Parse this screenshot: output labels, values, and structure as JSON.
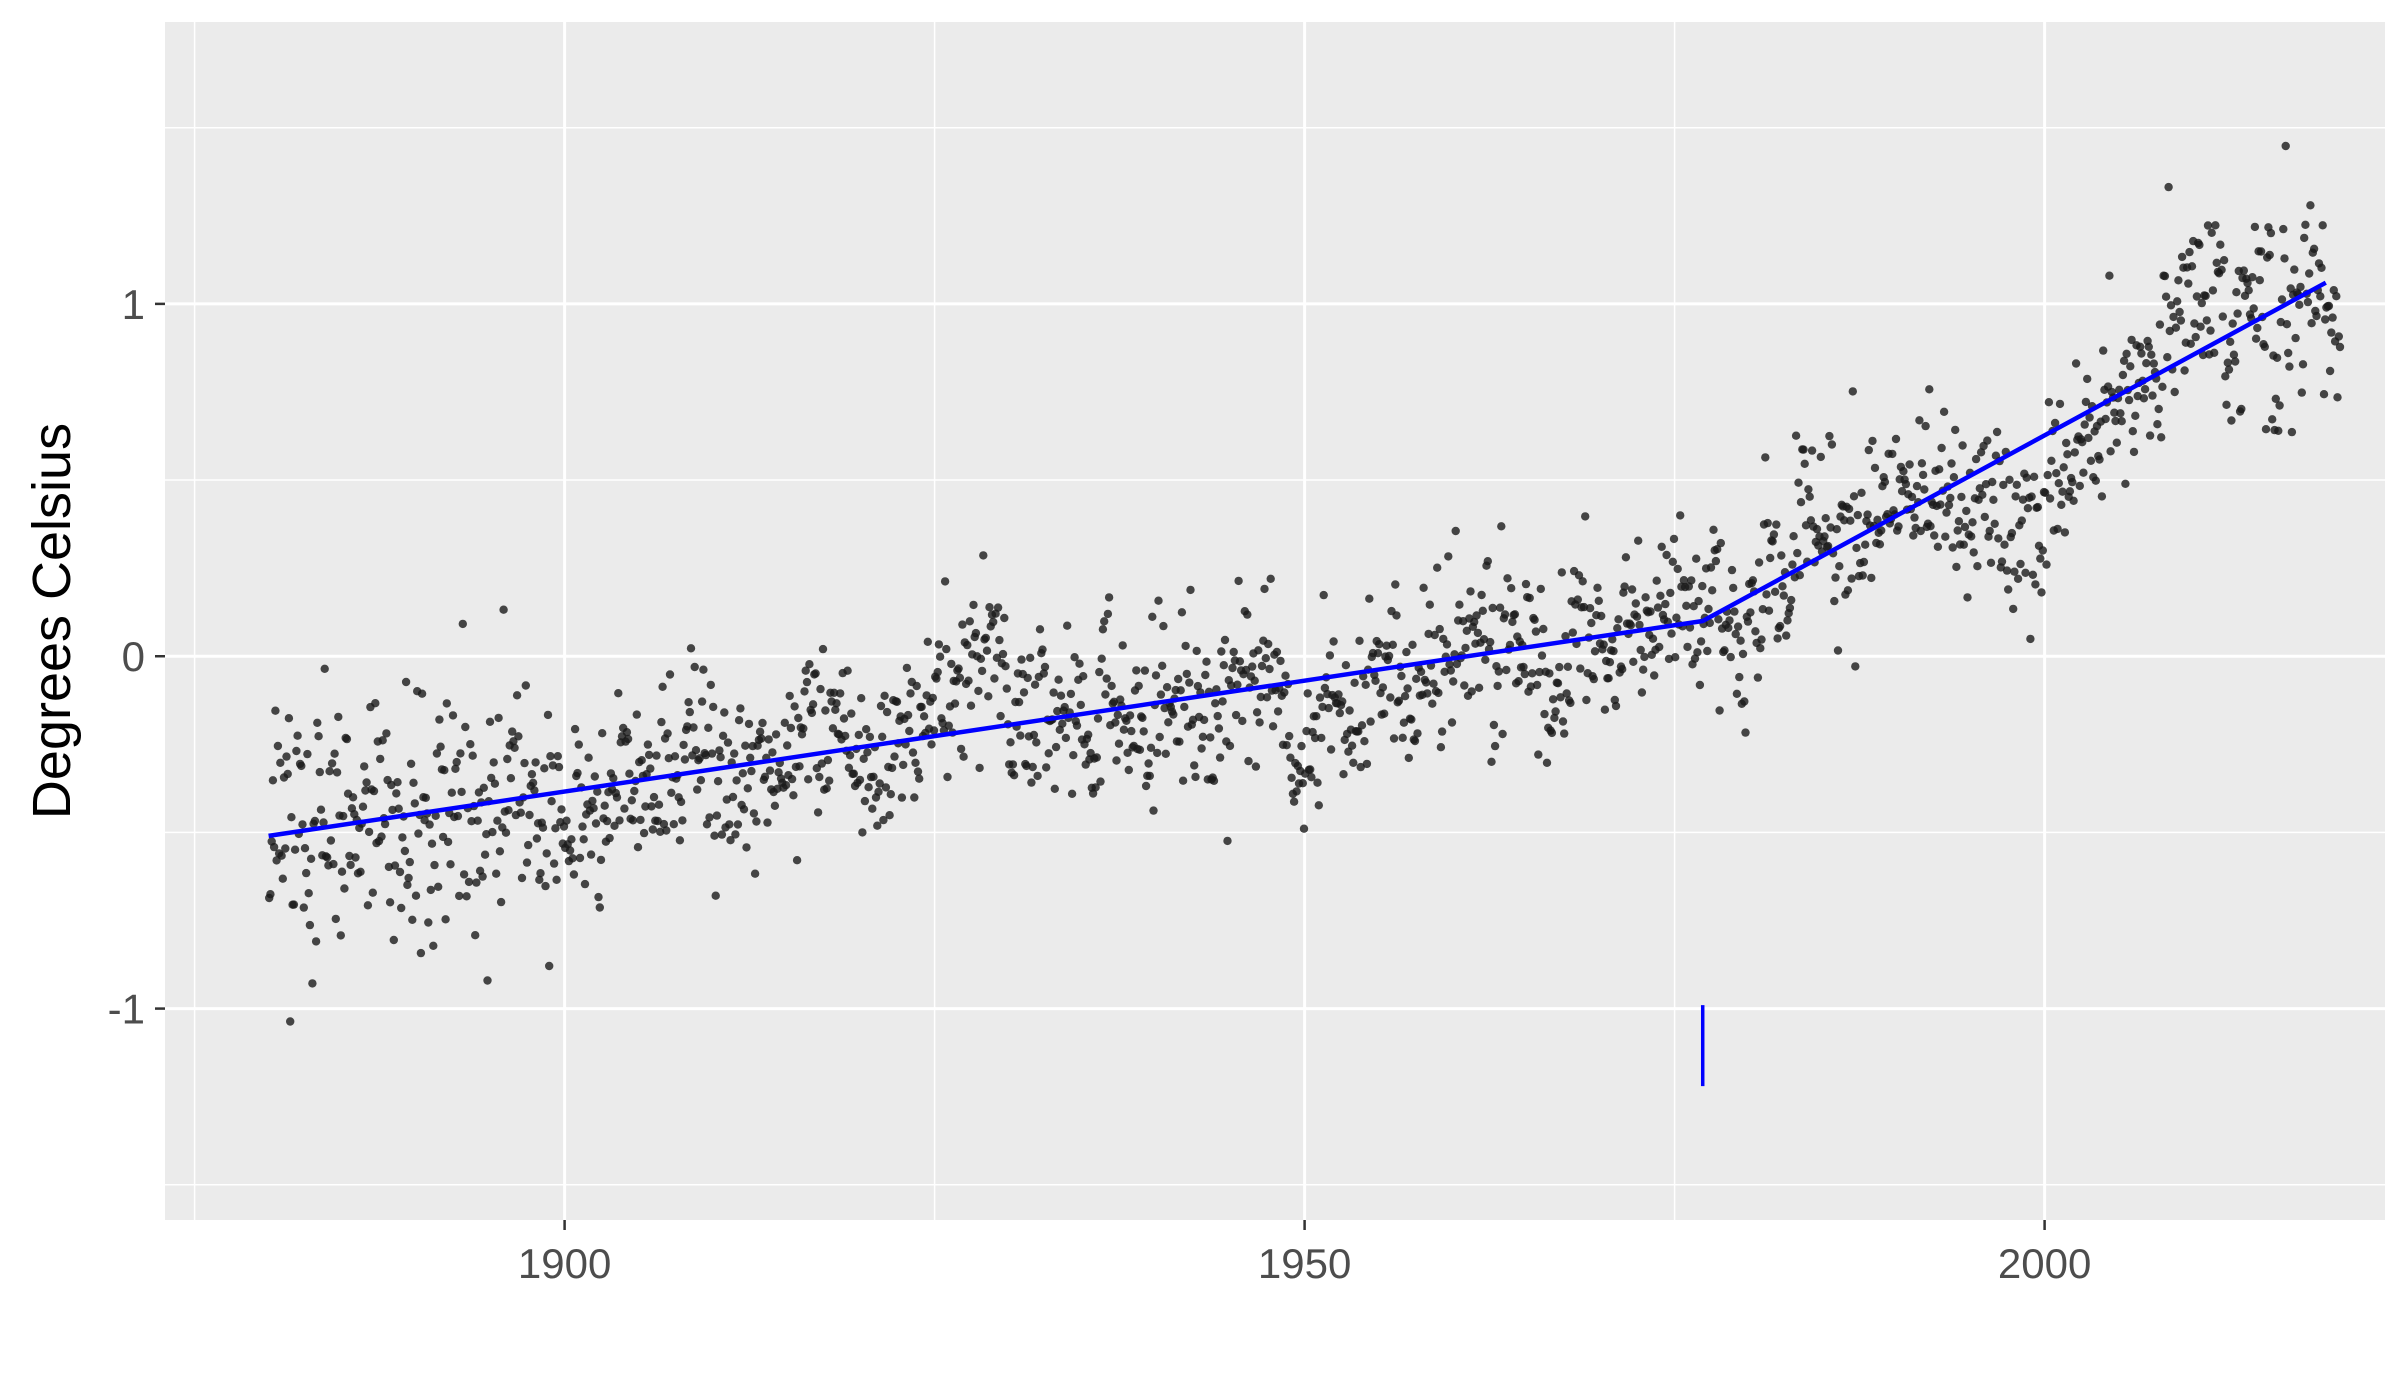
{
  "chart_data": {
    "type": "scatter",
    "title": "",
    "xlabel": "",
    "ylabel": "Degrees Celsius",
    "xlim": [
      1873,
      2023
    ],
    "ylim": [
      -1.6,
      1.8
    ],
    "x_ticks": [
      1900,
      1950,
      2000
    ],
    "y_ticks": [
      -1,
      0,
      1
    ],
    "x_tick_labels": [
      "1900",
      "1950",
      "2000"
    ],
    "y_tick_labels": [
      "-1",
      "0",
      "1"
    ],
    "grid": true,
    "legend": "none",
    "colors": {
      "panel": "#ebebeb",
      "grid": "#ffffff",
      "points": "#1a1a1a",
      "trend_line": "#0000ff"
    },
    "scatter_series": {
      "description": "monthly anomalies 1880-2019",
      "start_year": 1880,
      "end_year": 2019,
      "points_per_year": 12
    },
    "trend_line": {
      "x": [
        1880,
        1976.9,
        2019
      ],
      "y": [
        -0.51,
        0.1,
        1.06
      ]
    },
    "breakpoint": {
      "x": 1976.9,
      "y_range": [
        -1.22,
        -0.99
      ]
    }
  }
}
